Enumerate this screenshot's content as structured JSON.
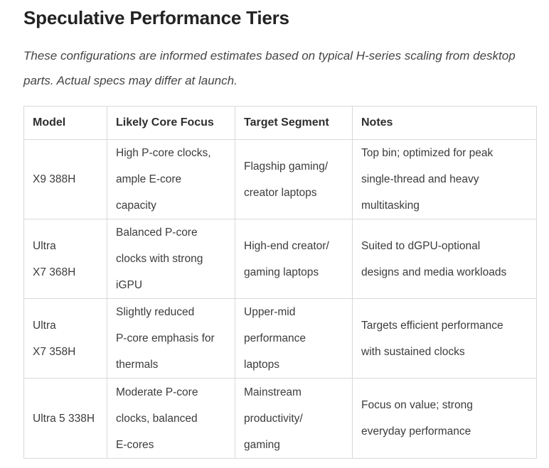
{
  "page": {
    "title": "Speculative Performance Tiers",
    "intro": "These configurations are informed estimates based on typical H-series scaling from desktop parts. Actual specs may differ at launch."
  },
  "table": {
    "columns": [
      "Model",
      "Likely Core Focus",
      "Target Segment",
      "Notes"
    ],
    "rows": [
      {
        "model": "X9 388H",
        "core_focus": "High P-core clocks,\nample E-core\ncapacity",
        "segment": "Flagship gaming/\ncreator laptops",
        "notes": "Top bin; optimized for peak\nsingle-thread and heavy\nmultitasking"
      },
      {
        "model": "Ultra\nX7 368H",
        "core_focus": "Balanced P-core\nclocks with strong\niGPU",
        "segment": "High-end creator/\ngaming laptops",
        "notes": "Suited to dGPU-optional\ndesigns and media workloads"
      },
      {
        "model": "Ultra\nX7 358H",
        "core_focus": "Slightly reduced\nP-core emphasis for\nthermals",
        "segment": "Upper-mid\nperformance\nlaptops",
        "notes": "Targets efficient performance\nwith sustained clocks"
      },
      {
        "model": "Ultra 5 338H",
        "core_focus": "Moderate P-core\nclocks, balanced\nE-cores",
        "segment": "Mainstream\nproductivity/\ngaming",
        "notes": "Focus on value; strong\neveryday performance"
      }
    ]
  },
  "colors": {
    "title_text": "#232323",
    "body_text": "#3c3c3c",
    "intro_text": "#454545",
    "table_border": "#d9d9d9",
    "background": "#ffffff"
  }
}
